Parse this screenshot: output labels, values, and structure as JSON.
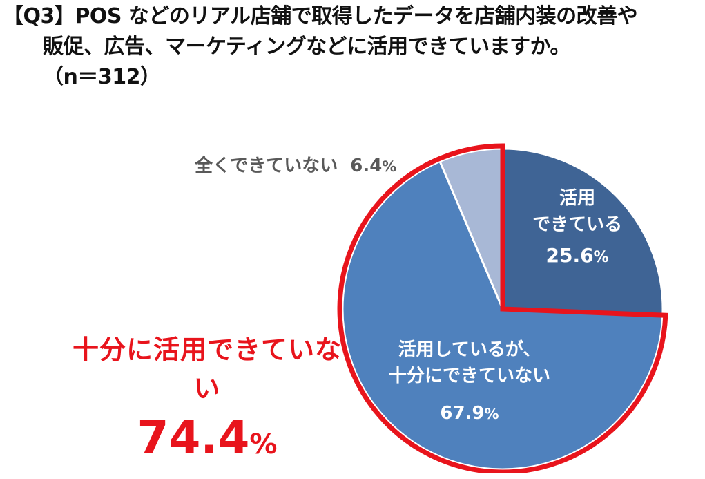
{
  "question": {
    "line1": "【Q3】POS などのリアル店舗で取得したデータを店舗内装の改善や",
    "line2": "販促、広告、マーケティングなどに活用できていますか。",
    "line3": "（n＝312）"
  },
  "callout": {
    "text": "十分に活用できていない",
    "value": "74.4",
    "unit": "%"
  },
  "colors": {
    "active": "#3f6495",
    "partial": "#4f81bd",
    "none": "#a8b8d6",
    "highlight": "#e8141c"
  },
  "chart_data": {
    "type": "pie",
    "n": 312,
    "slices": [
      {
        "lines": [
          "活用",
          "できている"
        ],
        "value": 25.6,
        "value_text": "25.6",
        "unit": "%",
        "color": "#3f6495",
        "highlight": false
      },
      {
        "lines": [
          "活用しているが、",
          "十分にできていない"
        ],
        "value": 67.9,
        "value_text": "67.9",
        "unit": "%",
        "color": "#4f81bd",
        "highlight": true
      },
      {
        "lines": [
          "全くできていない"
        ],
        "value": 6.4,
        "value_text": "6.4",
        "unit": "%",
        "color": "#a8b8d6",
        "highlight": true
      }
    ],
    "highlight_total": {
      "label": "十分に活用できていない",
      "value": 74.4
    }
  }
}
